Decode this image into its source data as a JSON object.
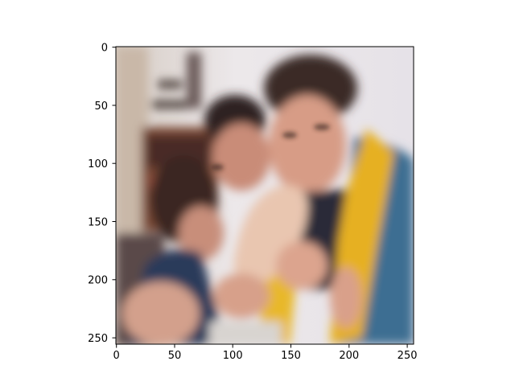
{
  "figure": {
    "x_axis": {
      "ticks": [
        0,
        50,
        100,
        150,
        200,
        250
      ],
      "range": [
        0,
        256
      ]
    },
    "y_axis": {
      "ticks": [
        0,
        50,
        100,
        150,
        200,
        250
      ],
      "range": [
        0,
        256
      ],
      "inverted": true
    }
  },
  "image": {
    "content": "blurry reconstructed photo of three people biting a long bread loaf together",
    "colors": {
      "background_wall": "#e8e4e6",
      "shelf": "#7a4a36",
      "hair": "#3a2824",
      "skin": "#d9a08a",
      "bread": "#e9c6b0",
      "yellow_vest": "#e6b020",
      "blue_shirt": "#3e6e92",
      "dark_top": "#2a2f45"
    }
  },
  "colors": {
    "axis": "#000000",
    "background": "#ffffff"
  }
}
